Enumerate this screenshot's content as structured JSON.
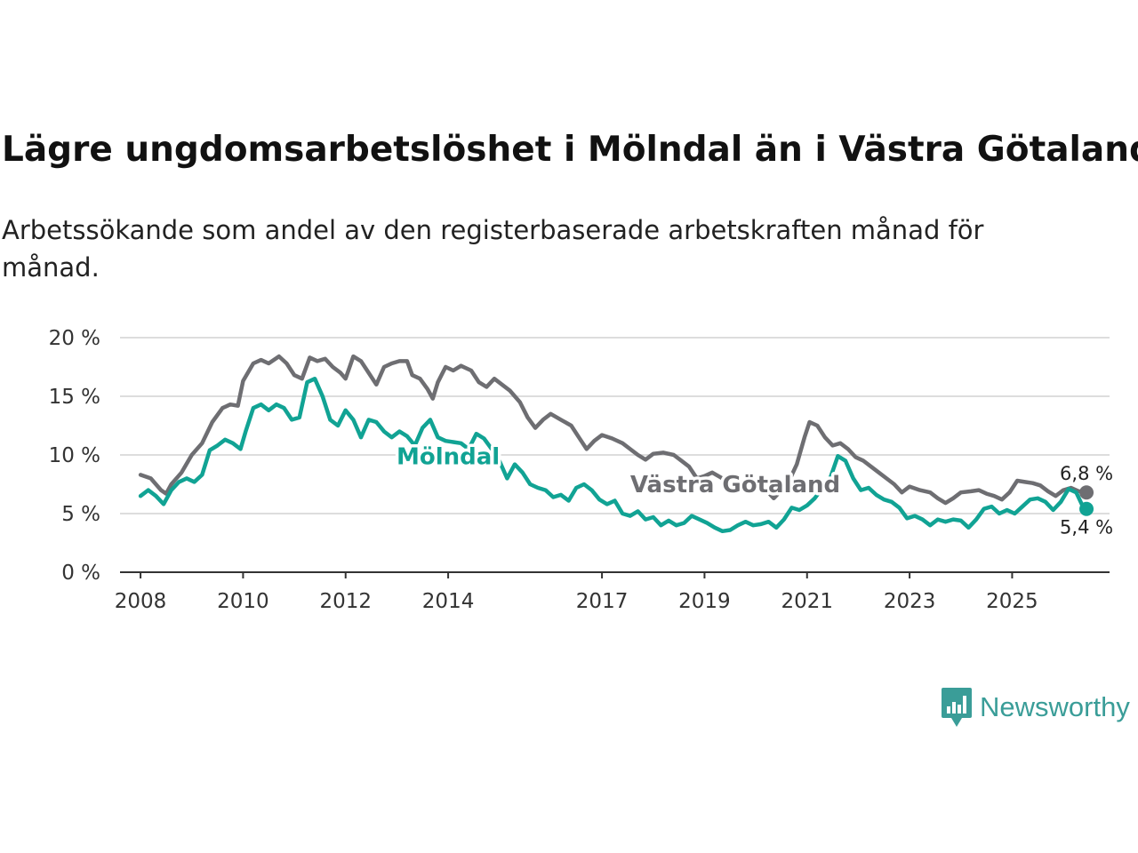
{
  "title": "Lägre ungdomsarbetslöshet i Mölndal än i Västra Götaland",
  "subtitle": "Arbetssökande som andel av den registerbaserade arbetskraften månad för månad.",
  "brand": "Newsworthy",
  "colors": {
    "molndal": "#11a394",
    "vg": "#6e6e72",
    "grid": "#dddddd",
    "axis": "#333333"
  },
  "chart_data": {
    "type": "line",
    "x_unit": "year",
    "xlim": [
      2007.6,
      2026.9
    ],
    "ylim": [
      0,
      20
    ],
    "y_ticks": [
      {
        "value": 0,
        "label": "0 %"
      },
      {
        "value": 5,
        "label": "5 %"
      },
      {
        "value": 10,
        "label": "10 %"
      },
      {
        "value": 15,
        "label": "15 %"
      },
      {
        "value": 20,
        "label": "20 %"
      }
    ],
    "x_ticks": [
      {
        "value": 2008,
        "label": "2008"
      },
      {
        "value": 2010,
        "label": "2010"
      },
      {
        "value": 2012,
        "label": "2012"
      },
      {
        "value": 2014,
        "label": "2014"
      },
      {
        "value": 2017,
        "label": "2017"
      },
      {
        "value": 2019,
        "label": "2019"
      },
      {
        "value": 2021,
        "label": "2021"
      },
      {
        "value": 2023,
        "label": "2023"
      },
      {
        "value": 2025,
        "label": "2025"
      }
    ],
    "series": [
      {
        "name": "Västra Götaland",
        "color_key": "vg",
        "end_label": "6,8 %",
        "points": [
          [
            2008.0,
            8.3
          ],
          [
            2008.2,
            8.0
          ],
          [
            2008.4,
            7.0
          ],
          [
            2008.5,
            6.7
          ],
          [
            2008.6,
            7.5
          ],
          [
            2008.8,
            8.5
          ],
          [
            2009.0,
            10.0
          ],
          [
            2009.2,
            11.0
          ],
          [
            2009.4,
            12.8
          ],
          [
            2009.6,
            14.0
          ],
          [
            2009.75,
            14.3
          ],
          [
            2009.9,
            14.2
          ],
          [
            2010.0,
            16.3
          ],
          [
            2010.2,
            17.8
          ],
          [
            2010.35,
            18.1
          ],
          [
            2010.5,
            17.8
          ],
          [
            2010.7,
            18.4
          ],
          [
            2010.85,
            17.8
          ],
          [
            2011.0,
            16.8
          ],
          [
            2011.15,
            16.5
          ],
          [
            2011.3,
            18.3
          ],
          [
            2011.45,
            18.0
          ],
          [
            2011.6,
            18.2
          ],
          [
            2011.75,
            17.5
          ],
          [
            2011.9,
            17.0
          ],
          [
            2012.0,
            16.5
          ],
          [
            2012.15,
            18.4
          ],
          [
            2012.3,
            18.0
          ],
          [
            2012.45,
            17.0
          ],
          [
            2012.6,
            16.0
          ],
          [
            2012.75,
            17.5
          ],
          [
            2012.9,
            17.8
          ],
          [
            2013.05,
            18.0
          ],
          [
            2013.2,
            18.0
          ],
          [
            2013.3,
            16.8
          ],
          [
            2013.45,
            16.5
          ],
          [
            2013.6,
            15.6
          ],
          [
            2013.7,
            14.8
          ],
          [
            2013.8,
            16.2
          ],
          [
            2013.95,
            17.5
          ],
          [
            2014.1,
            17.2
          ],
          [
            2014.25,
            17.6
          ],
          [
            2014.45,
            17.2
          ],
          [
            2014.6,
            16.2
          ],
          [
            2014.75,
            15.8
          ],
          [
            2014.9,
            16.5
          ],
          [
            2015.05,
            16.0
          ],
          [
            2015.2,
            15.5
          ],
          [
            2015.4,
            14.5
          ],
          [
            2015.55,
            13.2
          ],
          [
            2015.7,
            12.3
          ],
          [
            2015.85,
            13.0
          ],
          [
            2016.0,
            13.5
          ],
          [
            2016.2,
            13.0
          ],
          [
            2016.4,
            12.5
          ],
          [
            2016.55,
            11.5
          ],
          [
            2016.7,
            10.5
          ],
          [
            2016.85,
            11.2
          ],
          [
            2017.0,
            11.7
          ],
          [
            2017.2,
            11.4
          ],
          [
            2017.4,
            11.0
          ],
          [
            2017.55,
            10.5
          ],
          [
            2017.7,
            10.0
          ],
          [
            2017.85,
            9.6
          ],
          [
            2018.0,
            10.1
          ],
          [
            2018.2,
            10.2
          ],
          [
            2018.4,
            10.0
          ],
          [
            2018.55,
            9.5
          ],
          [
            2018.7,
            9.0
          ],
          [
            2018.85,
            8.0
          ],
          [
            2019.0,
            8.2
          ],
          [
            2019.15,
            8.5
          ],
          [
            2019.35,
            8.0
          ],
          [
            2019.5,
            7.5
          ],
          [
            2019.65,
            6.8
          ],
          [
            2019.8,
            7.2
          ],
          [
            2020.0,
            7.5
          ],
          [
            2020.2,
            7.0
          ],
          [
            2020.35,
            6.3
          ],
          [
            2020.5,
            7.0
          ],
          [
            2020.65,
            7.8
          ],
          [
            2020.8,
            9.2
          ],
          [
            2020.95,
            11.5
          ],
          [
            2021.05,
            12.8
          ],
          [
            2021.2,
            12.5
          ],
          [
            2021.35,
            11.5
          ],
          [
            2021.5,
            10.8
          ],
          [
            2021.65,
            11.0
          ],
          [
            2021.8,
            10.5
          ],
          [
            2021.95,
            9.8
          ],
          [
            2022.1,
            9.5
          ],
          [
            2022.25,
            9.0
          ],
          [
            2022.4,
            8.5
          ],
          [
            2022.55,
            8.0
          ],
          [
            2022.7,
            7.5
          ],
          [
            2022.85,
            6.8
          ],
          [
            2023.0,
            7.3
          ],
          [
            2023.2,
            7.0
          ],
          [
            2023.4,
            6.8
          ],
          [
            2023.55,
            6.3
          ],
          [
            2023.7,
            5.9
          ],
          [
            2023.85,
            6.3
          ],
          [
            2024.0,
            6.8
          ],
          [
            2024.2,
            6.9
          ],
          [
            2024.35,
            7.0
          ],
          [
            2024.5,
            6.7
          ],
          [
            2024.65,
            6.5
          ],
          [
            2024.8,
            6.2
          ],
          [
            2024.95,
            6.8
          ],
          [
            2025.1,
            7.8
          ],
          [
            2025.25,
            7.7
          ],
          [
            2025.4,
            7.6
          ],
          [
            2025.55,
            7.4
          ],
          [
            2025.7,
            6.9
          ],
          [
            2025.85,
            6.5
          ],
          [
            2026.0,
            7.0
          ],
          [
            2026.15,
            7.2
          ],
          [
            2026.3,
            6.9
          ],
          [
            2026.45,
            6.8
          ]
        ]
      },
      {
        "name": "Mölndal",
        "color_key": "molndal",
        "end_label": "5,4 %",
        "points": [
          [
            2008.0,
            6.5
          ],
          [
            2008.15,
            7.0
          ],
          [
            2008.3,
            6.5
          ],
          [
            2008.45,
            5.8
          ],
          [
            2008.6,
            7.0
          ],
          [
            2008.75,
            7.7
          ],
          [
            2008.9,
            8.0
          ],
          [
            2009.05,
            7.7
          ],
          [
            2009.2,
            8.3
          ],
          [
            2009.35,
            10.4
          ],
          [
            2009.5,
            10.8
          ],
          [
            2009.65,
            11.3
          ],
          [
            2009.8,
            11.0
          ],
          [
            2009.95,
            10.5
          ],
          [
            2010.05,
            12.0
          ],
          [
            2010.2,
            14.0
          ],
          [
            2010.35,
            14.3
          ],
          [
            2010.5,
            13.8
          ],
          [
            2010.65,
            14.3
          ],
          [
            2010.8,
            14.0
          ],
          [
            2010.95,
            13.0
          ],
          [
            2011.1,
            13.2
          ],
          [
            2011.25,
            16.2
          ],
          [
            2011.4,
            16.5
          ],
          [
            2011.55,
            15.0
          ],
          [
            2011.7,
            13.0
          ],
          [
            2011.85,
            12.5
          ],
          [
            2012.0,
            13.8
          ],
          [
            2012.15,
            13.0
          ],
          [
            2012.3,
            11.5
          ],
          [
            2012.45,
            13.0
          ],
          [
            2012.6,
            12.8
          ],
          [
            2012.75,
            12.0
          ],
          [
            2012.9,
            11.5
          ],
          [
            2013.05,
            12.0
          ],
          [
            2013.2,
            11.6
          ],
          [
            2013.35,
            10.8
          ],
          [
            2013.5,
            12.3
          ],
          [
            2013.65,
            13.0
          ],
          [
            2013.8,
            11.5
          ],
          [
            2013.95,
            11.2
          ],
          [
            2014.1,
            11.1
          ],
          [
            2014.25,
            11.0
          ],
          [
            2014.4,
            10.5
          ],
          [
            2014.55,
            11.8
          ],
          [
            2014.7,
            11.4
          ],
          [
            2014.85,
            10.5
          ],
          [
            2015.0,
            9.5
          ],
          [
            2015.15,
            8.0
          ],
          [
            2015.3,
            9.2
          ],
          [
            2015.45,
            8.5
          ],
          [
            2015.6,
            7.5
          ],
          [
            2015.75,
            7.2
          ],
          [
            2015.9,
            7.0
          ],
          [
            2016.05,
            6.4
          ],
          [
            2016.2,
            6.6
          ],
          [
            2016.35,
            6.1
          ],
          [
            2016.5,
            7.2
          ],
          [
            2016.65,
            7.5
          ],
          [
            2016.8,
            7.0
          ],
          [
            2016.95,
            6.2
          ],
          [
            2017.1,
            5.8
          ],
          [
            2017.25,
            6.1
          ],
          [
            2017.4,
            5.0
          ],
          [
            2017.55,
            4.8
          ],
          [
            2017.7,
            5.2
          ],
          [
            2017.85,
            4.5
          ],
          [
            2018.0,
            4.7
          ],
          [
            2018.15,
            4.0
          ],
          [
            2018.3,
            4.4
          ],
          [
            2018.45,
            4.0
          ],
          [
            2018.6,
            4.2
          ],
          [
            2018.75,
            4.8
          ],
          [
            2018.9,
            4.5
          ],
          [
            2019.05,
            4.2
          ],
          [
            2019.2,
            3.8
          ],
          [
            2019.35,
            3.5
          ],
          [
            2019.5,
            3.6
          ],
          [
            2019.65,
            4.0
          ],
          [
            2019.8,
            4.3
          ],
          [
            2019.95,
            4.0
          ],
          [
            2020.1,
            4.1
          ],
          [
            2020.25,
            4.3
          ],
          [
            2020.4,
            3.8
          ],
          [
            2020.55,
            4.5
          ],
          [
            2020.7,
            5.5
          ],
          [
            2020.85,
            5.3
          ],
          [
            2021.0,
            5.7
          ],
          [
            2021.15,
            6.3
          ],
          [
            2021.3,
            7.2
          ],
          [
            2021.45,
            8.0
          ],
          [
            2021.6,
            9.9
          ],
          [
            2021.75,
            9.5
          ],
          [
            2021.9,
            8.0
          ],
          [
            2022.05,
            7.0
          ],
          [
            2022.2,
            7.2
          ],
          [
            2022.35,
            6.6
          ],
          [
            2022.5,
            6.2
          ],
          [
            2022.65,
            6.0
          ],
          [
            2022.8,
            5.5
          ],
          [
            2022.95,
            4.6
          ],
          [
            2023.1,
            4.8
          ],
          [
            2023.25,
            4.5
          ],
          [
            2023.4,
            4.0
          ],
          [
            2023.55,
            4.5
          ],
          [
            2023.7,
            4.3
          ],
          [
            2023.85,
            4.5
          ],
          [
            2024.0,
            4.4
          ],
          [
            2024.15,
            3.8
          ],
          [
            2024.3,
            4.5
          ],
          [
            2024.45,
            5.4
          ],
          [
            2024.6,
            5.6
          ],
          [
            2024.75,
            5.0
          ],
          [
            2024.9,
            5.3
          ],
          [
            2025.05,
            5.0
          ],
          [
            2025.2,
            5.6
          ],
          [
            2025.35,
            6.2
          ],
          [
            2025.5,
            6.3
          ],
          [
            2025.65,
            6.0
          ],
          [
            2025.8,
            5.3
          ],
          [
            2025.95,
            6.0
          ],
          [
            2026.1,
            7.1
          ],
          [
            2026.25,
            6.8
          ],
          [
            2026.4,
            5.4
          ],
          [
            2026.45,
            5.4
          ]
        ]
      }
    ]
  }
}
